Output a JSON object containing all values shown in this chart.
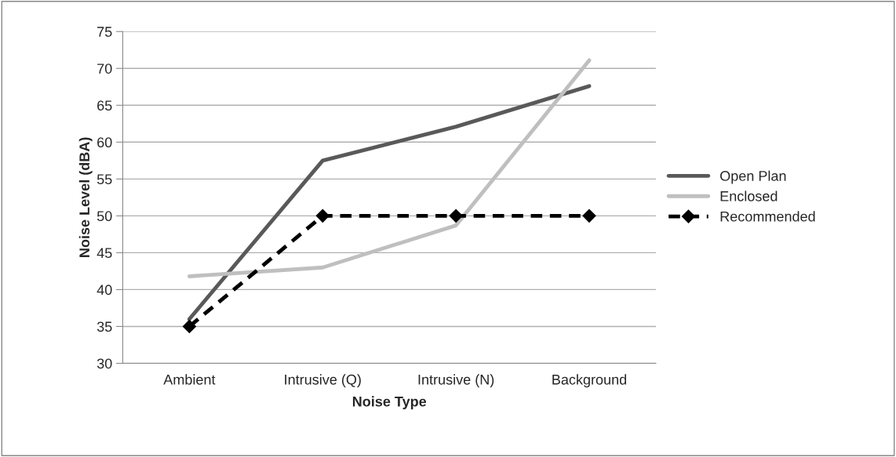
{
  "chart_data": {
    "type": "line",
    "xlabel": "Noise Type",
    "ylabel": "Noise Level (dBA)",
    "categories": [
      "Ambient",
      "Intrusive (Q)",
      "Intrusive (N)",
      "Background"
    ],
    "series": [
      {
        "name": "Open Plan",
        "color": "#595959",
        "values": [
          36.0,
          57.5,
          62.1,
          67.6
        ],
        "marker": "none",
        "line_style": "solid"
      },
      {
        "name": "Enclosed",
        "color": "#bfbfbf",
        "values": [
          41.8,
          43.0,
          48.7,
          71.1
        ],
        "marker": "none",
        "line_style": "solid"
      },
      {
        "name": "Recommended",
        "color": "#000000",
        "values": [
          35,
          50,
          50,
          50
        ],
        "marker": "diamond",
        "line_style": "dashed"
      }
    ],
    "ylim": [
      30,
      75
    ],
    "yticks": [
      30,
      35,
      40,
      45,
      50,
      55,
      60,
      65,
      70,
      75
    ],
    "grid": "y",
    "legend": "right"
  }
}
